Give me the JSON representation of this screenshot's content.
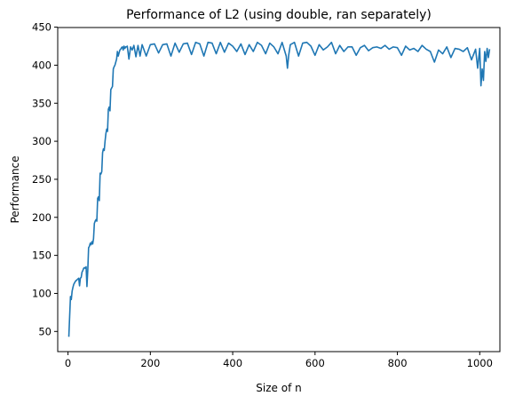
{
  "chart_data": {
    "type": "line",
    "title": "Performance of L2 (using double, ran separately)",
    "xlabel": "Size of n",
    "ylabel": "Performance",
    "xlim": [
      -25,
      1049
    ],
    "ylim": [
      23.5,
      449.5
    ],
    "xticks": [
      0,
      200,
      400,
      600,
      800,
      1000
    ],
    "yticks": [
      50,
      100,
      150,
      200,
      250,
      300,
      350,
      400,
      450
    ],
    "grid": false,
    "line_color": "#1f77b4",
    "series": [
      {
        "x": [
          2,
          4,
          6,
          8,
          10,
          12,
          14,
          16,
          18,
          20,
          22,
          24,
          26,
          28,
          30,
          32,
          34,
          36,
          38,
          40,
          42,
          44,
          46,
          48,
          50,
          52,
          54,
          56,
          58,
          60,
          62,
          64,
          66,
          68,
          70,
          72,
          74,
          76,
          78,
          80,
          82,
          84,
          86,
          88,
          90,
          92,
          94,
          96,
          98,
          100,
          102,
          104,
          106,
          108,
          110,
          112,
          114,
          116,
          118,
          120,
          122,
          124,
          126,
          128,
          130,
          132,
          134,
          136,
          138,
          140,
          142,
          144,
          148,
          152,
          156,
          160,
          165,
          170,
          175,
          180,
          190,
          200,
          210,
          220,
          230,
          240,
          250,
          260,
          270,
          280,
          290,
          300,
          310,
          320,
          330,
          340,
          350,
          360,
          370,
          380,
          390,
          400,
          410,
          420,
          430,
          440,
          450,
          460,
          470,
          480,
          490,
          500,
          510,
          520,
          530,
          533,
          536,
          540,
          550,
          560,
          570,
          580,
          590,
          600,
          610,
          620,
          630,
          640,
          650,
          660,
          670,
          680,
          690,
          700,
          710,
          720,
          730,
          740,
          750,
          760,
          770,
          780,
          790,
          800,
          810,
          820,
          830,
          840,
          850,
          860,
          870,
          880,
          890,
          900,
          910,
          920,
          930,
          940,
          950,
          960,
          970,
          980,
          990,
          995,
          1000,
          1003,
          1006,
          1009,
          1012,
          1015,
          1018,
          1021,
          1024
        ],
        "y": [
          43,
          70,
          96,
          92,
          103,
          108,
          112,
          114,
          116,
          117,
          118,
          119,
          120,
          110,
          120,
          121,
          128,
          130,
          133,
          134,
          133,
          135,
          109,
          130,
          160,
          162,
          166,
          164,
          168,
          165,
          172,
          192,
          195,
          197,
          195,
          225,
          227,
          222,
          258,
          257,
          260,
          285,
          290,
          288,
          300,
          310,
          316,
          313,
          342,
          345,
          340,
          368,
          370,
          372,
          395,
          398,
          400,
          404,
          408,
          418,
          412,
          416,
          420,
          421,
          423,
          424,
          420,
          425,
          422,
          424,
          424,
          425,
          408,
          424,
          420,
          426,
          411,
          426,
          412,
          427,
          412,
          427,
          428,
          416,
          427,
          428,
          412,
          429,
          417,
          428,
          429,
          414,
          430,
          428,
          412,
          430,
          429,
          415,
          430,
          417,
          429,
          425,
          418,
          428,
          414,
          427,
          418,
          430,
          426,
          415,
          429,
          424,
          415,
          430,
          412,
          396,
          413,
          427,
          430,
          412,
          429,
          430,
          425,
          413,
          427,
          420,
          424,
          430,
          415,
          426,
          418,
          424,
          424,
          413,
          423,
          426,
          419,
          423,
          424,
          422,
          426,
          421,
          424,
          423,
          413,
          425,
          420,
          422,
          418,
          426,
          421,
          418,
          404,
          420,
          415,
          424,
          410,
          422,
          421,
          418,
          423,
          407,
          421,
          396,
          422,
          373,
          395,
          380,
          418,
          405,
          422,
          410,
          421
        ]
      }
    ]
  }
}
